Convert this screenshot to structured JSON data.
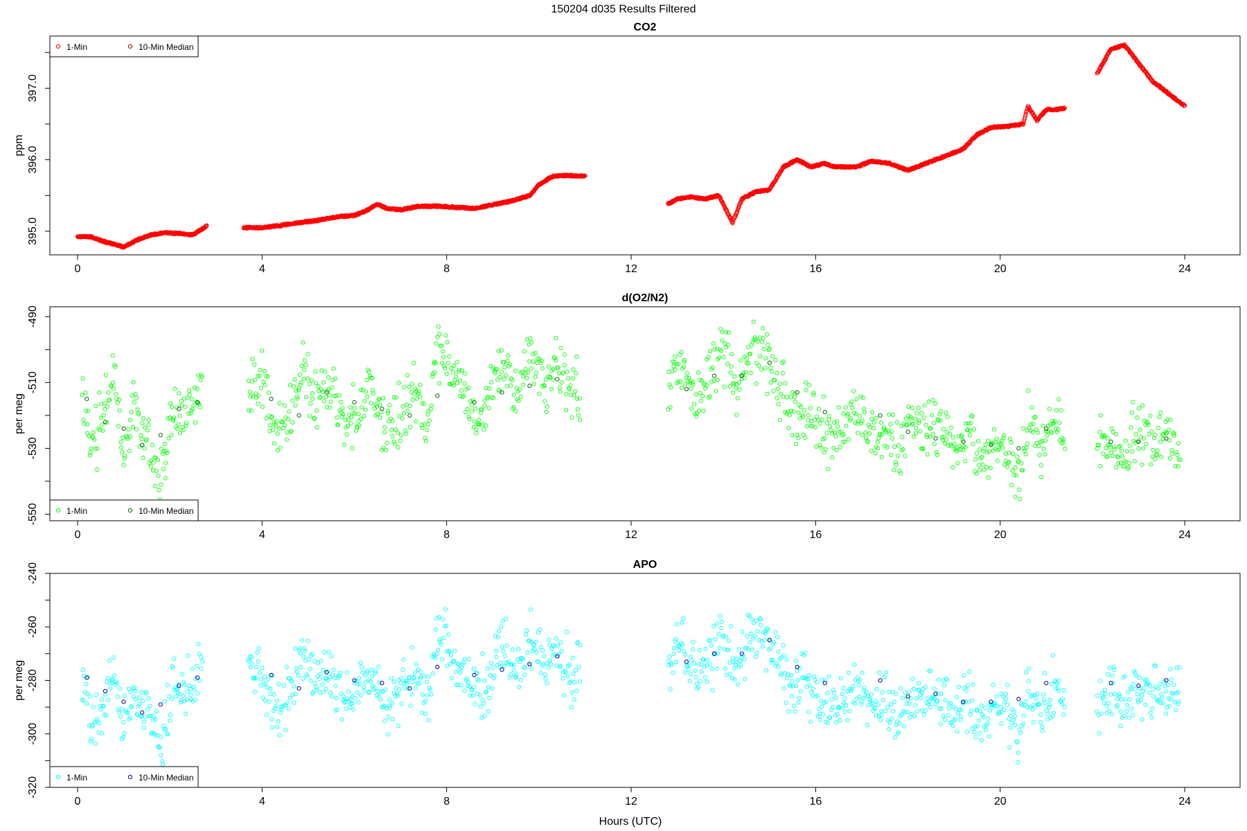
{
  "title": "150204   d035   Results Filtered",
  "xlabel": "Hours (UTC)",
  "colors": {
    "co2_1min": "#ff0000",
    "co2_median": "#8b0000",
    "o2_1min": "#00ff00",
    "o2_median": "#006400",
    "apo_1min": "#00ffff",
    "apo_median": "#00008b",
    "axis": "#000000"
  },
  "chart_data": [
    {
      "type": "scatter",
      "title": "CO2",
      "ylabel": "ppm",
      "xlim": [
        -0.6,
        25.2
      ],
      "ylim": [
        394.67,
        397.73
      ],
      "xticks": [
        "0",
        "4",
        "8",
        "12",
        "16",
        "20",
        "24"
      ],
      "yticks": [
        "395.0",
        "396.0",
        "397.0"
      ],
      "legend_position": "top-left",
      "legend": [
        "1-Min",
        "10-Min Median"
      ],
      "series": [
        {
          "name": "1-Min",
          "x": [
            0.0,
            0.3,
            0.6,
            0.9,
            1.0,
            1.3,
            1.6,
            1.9,
            2.2,
            2.5,
            2.8,
            3.6,
            4.0,
            4.4,
            4.8,
            5.2,
            5.6,
            6.0,
            6.3,
            6.5,
            6.7,
            7.0,
            7.4,
            7.8,
            8.3,
            8.6,
            9.0,
            9.4,
            9.8,
            10.0,
            10.3,
            10.6,
            11.0,
            12.8,
            13.0,
            13.3,
            13.6,
            13.9,
            14.2,
            14.4,
            14.7,
            15.0,
            15.3,
            15.6,
            15.9,
            16.2,
            16.4,
            16.9,
            17.2,
            17.6,
            18.0,
            18.4,
            18.8,
            19.2,
            19.5,
            19.8,
            20.2,
            20.5,
            20.6,
            20.8,
            21.0,
            21.2,
            21.4,
            22.1,
            22.4,
            22.7,
            23.0,
            23.3,
            23.6,
            24.0
          ],
          "y": [
            394.93,
            394.92,
            394.85,
            394.8,
            394.78,
            394.88,
            394.95,
            394.98,
            394.97,
            394.95,
            395.07,
            395.05,
            395.05,
            395.08,
            395.12,
            395.15,
            395.2,
            395.22,
            395.3,
            395.38,
            395.32,
            395.3,
            395.35,
            395.35,
            395.33,
            395.32,
            395.37,
            395.42,
            395.5,
            395.65,
            395.77,
            395.78,
            395.77,
            395.38,
            395.45,
            395.48,
            395.45,
            395.5,
            395.12,
            395.45,
            395.55,
            395.58,
            395.9,
            396.0,
            395.9,
            395.95,
            395.9,
            395.9,
            395.98,
            395.95,
            395.85,
            395.95,
            396.05,
            396.15,
            396.35,
            396.45,
            396.47,
            396.5,
            396.75,
            396.55,
            396.7,
            396.7,
            396.72,
            397.2,
            397.55,
            397.6,
            397.35,
            397.1,
            396.95,
            396.75
          ]
        },
        {
          "name": "10-Min Median",
          "x": [],
          "y": []
        }
      ]
    },
    {
      "type": "scatter",
      "title": "d(O2/N2)",
      "ylabel": "per meg",
      "xlim": [
        -0.6,
        25.2
      ],
      "ylim": [
        -552,
        -487
      ],
      "xticks": [
        "0",
        "4",
        "8",
        "12",
        "16",
        "20",
        "24"
      ],
      "yticks": [
        "-490",
        "-510",
        "-530",
        "-550"
      ],
      "legend_position": "bottom-left",
      "legend": [
        "1-Min",
        "10-Min Median"
      ],
      "series": [
        {
          "name": "1-Min",
          "x": [
            0.1,
            0.3,
            0.5,
            0.8,
            1.0,
            1.2,
            1.5,
            1.8,
            2.1,
            2.4,
            2.7,
            3.7,
            4.0,
            4.3,
            4.6,
            4.9,
            5.2,
            5.5,
            5.8,
            6.1,
            6.4,
            6.7,
            7.0,
            7.3,
            7.6,
            7.8,
            8.3,
            8.6,
            8.9,
            9.2,
            9.5,
            9.8,
            10.1,
            10.4,
            10.7,
            10.9,
            12.8,
            13.1,
            13.4,
            13.7,
            14.0,
            14.3,
            14.6,
            14.9,
            15.2,
            15.5,
            15.8,
            16.1,
            16.4,
            16.9,
            17.2,
            17.5,
            17.8,
            18.1,
            18.4,
            18.7,
            19.0,
            19.3,
            19.6,
            19.9,
            20.2,
            20.4,
            20.6,
            20.9,
            21.2,
            21.4,
            22.1,
            22.4,
            22.7,
            23.0,
            23.3,
            23.6,
            23.9
          ],
          "y": [
            -512,
            -532,
            -522,
            -506,
            -535,
            -518,
            -528,
            -540,
            -516,
            -522,
            -508,
            -514,
            -509,
            -528,
            -520,
            -505,
            -516,
            -512,
            -522,
            -518,
            -513,
            -525,
            -520,
            -510,
            -524,
            -498,
            -512,
            -521,
            -515,
            -502,
            -514,
            -500,
            -509,
            -505,
            -515,
            -510,
            -512,
            -502,
            -518,
            -507,
            -500,
            -514,
            -498,
            -502,
            -510,
            -520,
            -516,
            -523,
            -528,
            -518,
            -526,
            -524,
            -532,
            -520,
            -528,
            -523,
            -530,
            -525,
            -533,
            -528,
            -531,
            -540,
            -522,
            -530,
            -520,
            -528,
            -531,
            -527,
            -533,
            -524,
            -530,
            -526,
            -529
          ]
        },
        {
          "name": "10-Min Median",
          "x": [
            0.2,
            0.6,
            1.0,
            1.4,
            1.8,
            2.2,
            2.6,
            4.2,
            4.8,
            5.4,
            6.0,
            6.6,
            7.2,
            7.8,
            8.6,
            9.2,
            9.8,
            10.4,
            13.2,
            13.8,
            14.4,
            15.0,
            15.6,
            16.2,
            17.4,
            18.0,
            18.6,
            19.2,
            19.8,
            20.4,
            21.0,
            22.4,
            23.0,
            23.6
          ],
          "y": [
            -515,
            -522,
            -524,
            -529,
            -526,
            -518,
            -516,
            -515,
            -520,
            -513,
            -516,
            -518,
            -520,
            -514,
            -516,
            -513,
            -511,
            -509,
            -512,
            -508,
            -508,
            -504,
            -513,
            -519,
            -520,
            -525,
            -527,
            -528,
            -529,
            -530,
            -524,
            -528,
            -528,
            -527
          ]
        }
      ]
    },
    {
      "type": "scatter",
      "title": "APO",
      "ylabel": "per meg",
      "xlim": [
        -0.6,
        25.2
      ],
      "ylim": [
        -320,
        -240
      ],
      "xticks": [
        "0",
        "4",
        "8",
        "12",
        "16",
        "20",
        "24"
      ],
      "yticks": [
        "-240",
        "-260",
        "-280",
        "-300",
        "-320"
      ],
      "legend_position": "bottom-left",
      "legend": [
        "1-Min",
        "10-Min Median"
      ],
      "series": [
        {
          "name": "1-Min",
          "x": [
            0.1,
            0.3,
            0.5,
            0.8,
            1.0,
            1.2,
            1.5,
            1.8,
            2.1,
            2.4,
            2.7,
            3.7,
            4.0,
            4.3,
            4.6,
            4.9,
            5.2,
            5.5,
            5.8,
            6.1,
            6.4,
            6.7,
            7.0,
            7.3,
            7.6,
            7.8,
            8.3,
            8.6,
            8.9,
            9.2,
            9.5,
            9.8,
            10.1,
            10.4,
            10.7,
            10.9,
            12.8,
            13.1,
            13.4,
            13.7,
            14.0,
            14.3,
            14.6,
            14.9,
            15.2,
            15.5,
            15.8,
            16.1,
            16.4,
            16.9,
            17.2,
            17.5,
            17.8,
            18.1,
            18.4,
            18.7,
            19.0,
            19.3,
            19.6,
            19.9,
            20.2,
            20.4,
            20.6,
            20.9,
            21.2,
            21.4,
            22.1,
            22.4,
            22.7,
            23.0,
            23.3,
            23.6,
            23.9
          ],
          "y": [
            -282,
            -296,
            -290,
            -276,
            -298,
            -284,
            -292,
            -304,
            -281,
            -285,
            -272,
            -278,
            -274,
            -292,
            -285,
            -270,
            -281,
            -277,
            -287,
            -282,
            -278,
            -290,
            -284,
            -275,
            -289,
            -262,
            -276,
            -285,
            -280,
            -266,
            -278,
            -264,
            -273,
            -270,
            -279,
            -274,
            -276,
            -266,
            -281,
            -272,
            -264,
            -278,
            -262,
            -266,
            -274,
            -284,
            -280,
            -287,
            -292,
            -281,
            -289,
            -287,
            -295,
            -283,
            -290,
            -285,
            -292,
            -287,
            -295,
            -290,
            -293,
            -302,
            -284,
            -292,
            -282,
            -290,
            -287,
            -283,
            -289,
            -280,
            -285,
            -281,
            -285
          ]
        },
        {
          "name": "10-Min Median",
          "x": [
            0.2,
            0.6,
            1.0,
            1.4,
            1.8,
            2.2,
            2.6,
            4.2,
            4.8,
            5.4,
            6.0,
            6.6,
            7.2,
            7.8,
            8.6,
            9.2,
            9.8,
            10.4,
            13.2,
            13.8,
            14.4,
            15.0,
            15.6,
            16.2,
            17.4,
            18.0,
            18.6,
            19.2,
            19.8,
            20.4,
            21.0,
            22.4,
            23.0,
            23.6
          ],
          "y": [
            -279,
            -284,
            -288,
            -292,
            -289,
            -282,
            -279,
            -278,
            -283,
            -277,
            -280,
            -281,
            -283,
            -275,
            -278,
            -276,
            -274,
            -271,
            -273,
            -270,
            -270,
            -265,
            -275,
            -281,
            -280,
            -286,
            -285,
            -288,
            -288,
            -287,
            -281,
            -281,
            -282,
            -280
          ]
        }
      ]
    }
  ]
}
